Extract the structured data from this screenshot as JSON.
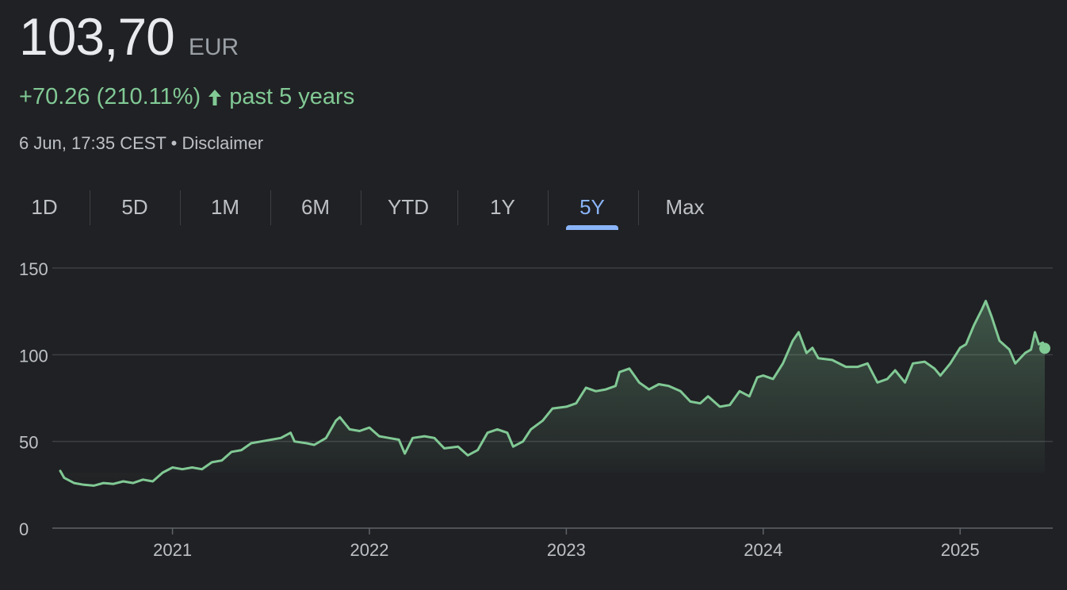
{
  "quote": {
    "price": "103,70",
    "currency": "EUR",
    "change": "+70.26 (210.11%)",
    "period": "past 5 years",
    "timestamp": "6 Jun, 17:35 CEST",
    "separator": "•",
    "disclaimer": "Disclaimer"
  },
  "colors": {
    "positive": "#81c995",
    "active_tab": "#8ab4f8",
    "background": "#202124"
  },
  "icons": {
    "change_direction": "arrow-up-icon"
  },
  "tabs": [
    {
      "label": "1D",
      "active": false
    },
    {
      "label": "5D",
      "active": false
    },
    {
      "label": "1M",
      "active": false
    },
    {
      "label": "6M",
      "active": false
    },
    {
      "label": "YTD",
      "active": false
    },
    {
      "label": "1Y",
      "active": false
    },
    {
      "label": "5Y",
      "active": true
    },
    {
      "label": "Max",
      "active": false
    }
  ],
  "chart_data": {
    "type": "area",
    "title": "",
    "xlabel": "",
    "ylabel": "",
    "ylim": [
      0,
      150
    ],
    "xlim": [
      2020.43,
      2025.43
    ],
    "y_ticks": [
      "0",
      "50",
      "100",
      "150"
    ],
    "x_ticks": [
      "2021",
      "2022",
      "2023",
      "2024",
      "2025"
    ],
    "grid": true,
    "series": [
      {
        "values": [
          [
            2020.43,
            33
          ],
          [
            2020.45,
            29
          ],
          [
            2020.5,
            26
          ],
          [
            2020.55,
            25
          ],
          [
            2020.6,
            24.5
          ],
          [
            2020.65,
            26
          ],
          [
            2020.7,
            25.5
          ],
          [
            2020.75,
            27
          ],
          [
            2020.8,
            26
          ],
          [
            2020.85,
            28
          ],
          [
            2020.9,
            27
          ],
          [
            2020.95,
            32
          ],
          [
            2021.0,
            35
          ],
          [
            2021.05,
            34
          ],
          [
            2021.1,
            35
          ],
          [
            2021.15,
            34
          ],
          [
            2021.2,
            38
          ],
          [
            2021.25,
            39
          ],
          [
            2021.3,
            44
          ],
          [
            2021.35,
            45
          ],
          [
            2021.4,
            49
          ],
          [
            2021.45,
            50
          ],
          [
            2021.5,
            51
          ],
          [
            2021.55,
            52
          ],
          [
            2021.6,
            55
          ],
          [
            2021.62,
            50
          ],
          [
            2021.68,
            49
          ],
          [
            2021.72,
            48
          ],
          [
            2021.78,
            52
          ],
          [
            2021.83,
            62
          ],
          [
            2021.85,
            64
          ],
          [
            2021.9,
            57
          ],
          [
            2021.95,
            56
          ],
          [
            2022.0,
            58
          ],
          [
            2022.05,
            53
          ],
          [
            2022.1,
            52
          ],
          [
            2022.15,
            51
          ],
          [
            2022.18,
            43
          ],
          [
            2022.22,
            52
          ],
          [
            2022.28,
            53
          ],
          [
            2022.33,
            52
          ],
          [
            2022.38,
            46
          ],
          [
            2022.45,
            47
          ],
          [
            2022.5,
            42
          ],
          [
            2022.55,
            45
          ],
          [
            2022.6,
            55
          ],
          [
            2022.65,
            57
          ],
          [
            2022.7,
            55
          ],
          [
            2022.73,
            47
          ],
          [
            2022.78,
            50
          ],
          [
            2022.82,
            57
          ],
          [
            2022.88,
            62
          ],
          [
            2022.93,
            69
          ],
          [
            2023.0,
            70
          ],
          [
            2023.05,
            72
          ],
          [
            2023.1,
            81
          ],
          [
            2023.15,
            79
          ],
          [
            2023.2,
            80
          ],
          [
            2023.25,
            82
          ],
          [
            2023.27,
            90
          ],
          [
            2023.32,
            92
          ],
          [
            2023.37,
            84
          ],
          [
            2023.42,
            80
          ],
          [
            2023.47,
            83
          ],
          [
            2023.52,
            82
          ],
          [
            2023.58,
            79
          ],
          [
            2023.63,
            73
          ],
          [
            2023.68,
            72
          ],
          [
            2023.72,
            76
          ],
          [
            2023.78,
            70
          ],
          [
            2023.83,
            71
          ],
          [
            2023.88,
            79
          ],
          [
            2023.93,
            76
          ],
          [
            2023.97,
            87
          ],
          [
            2024.0,
            88
          ],
          [
            2024.05,
            86
          ],
          [
            2024.1,
            95
          ],
          [
            2024.15,
            108
          ],
          [
            2024.18,
            113
          ],
          [
            2024.22,
            101
          ],
          [
            2024.25,
            104
          ],
          [
            2024.28,
            98
          ],
          [
            2024.35,
            97
          ],
          [
            2024.42,
            93
          ],
          [
            2024.48,
            93
          ],
          [
            2024.53,
            95
          ],
          [
            2024.58,
            84
          ],
          [
            2024.63,
            86
          ],
          [
            2024.67,
            91
          ],
          [
            2024.72,
            84
          ],
          [
            2024.76,
            95
          ],
          [
            2024.82,
            96
          ],
          [
            2024.87,
            92
          ],
          [
            2024.9,
            88
          ],
          [
            2024.95,
            95
          ],
          [
            2025.0,
            104
          ],
          [
            2025.03,
            106
          ],
          [
            2025.07,
            117
          ],
          [
            2025.11,
            126
          ],
          [
            2025.13,
            131
          ],
          [
            2025.16,
            122
          ],
          [
            2025.2,
            108
          ],
          [
            2025.25,
            103
          ],
          [
            2025.28,
            95
          ],
          [
            2025.33,
            101
          ],
          [
            2025.36,
            103
          ],
          [
            2025.38,
            113
          ],
          [
            2025.4,
            106
          ],
          [
            2025.42,
            107
          ],
          [
            2025.43,
            103.7
          ]
        ]
      }
    ]
  }
}
